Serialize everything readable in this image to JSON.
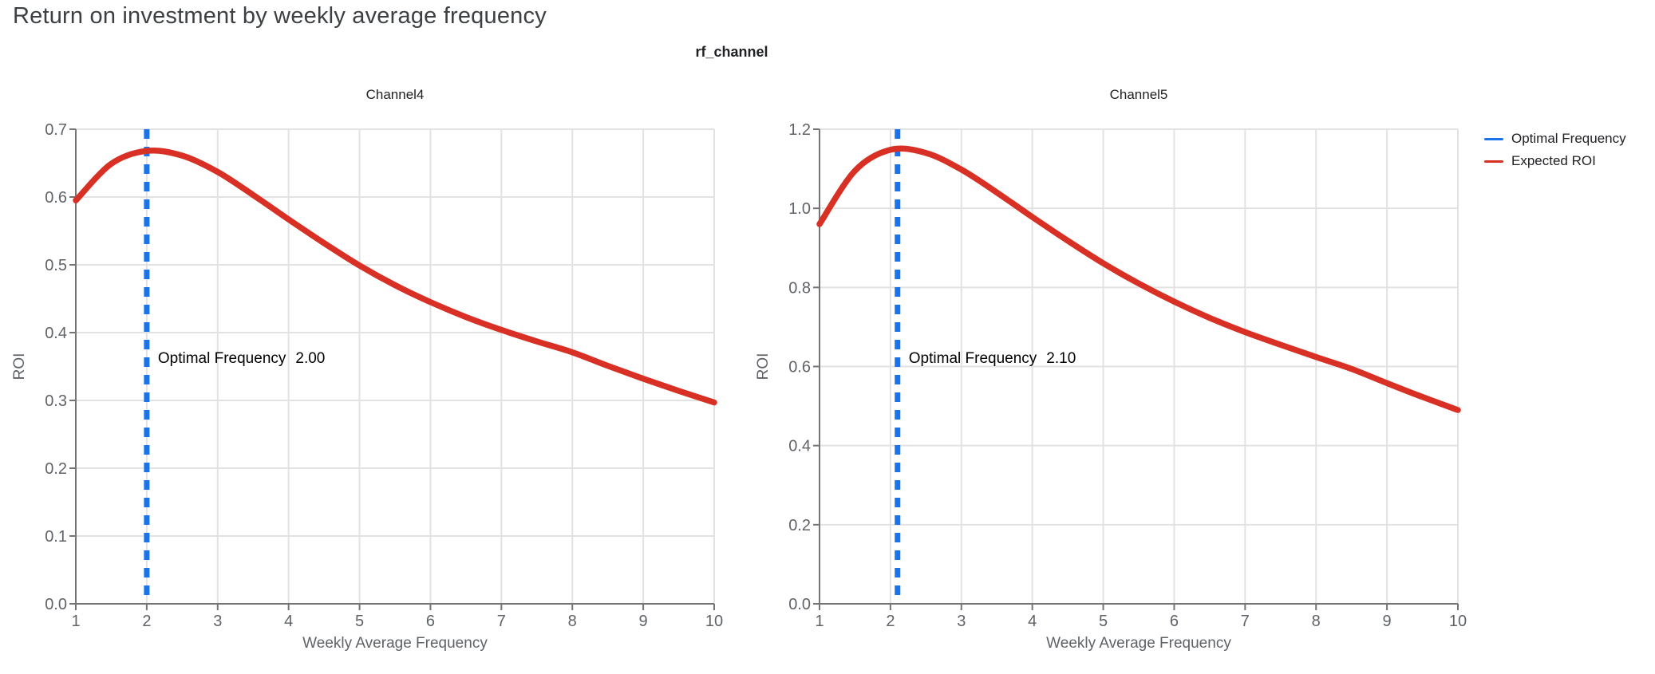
{
  "page": {
    "title": "Return on investment by weekly average frequency",
    "background_color": "#ffffff",
    "title_color": "#3c4043"
  },
  "facet": {
    "title": "rf_channel"
  },
  "legend": {
    "position": "top-right",
    "items": [
      {
        "label": "Optimal Frequency",
        "color": "#1a73e8"
      },
      {
        "label": "Expected ROI",
        "color": "#d93025"
      }
    ]
  },
  "style_colors": {
    "gridline": "#e2e2e2",
    "axis_line": "#757575",
    "tick_label": "#5f6368",
    "axis_title": "#5f6368",
    "subplot_title": "#212121",
    "annotation_text": "#000000"
  },
  "chart_data": [
    {
      "type": "line",
      "title": "Channel4",
      "xlabel": "Weekly Average Frequency",
      "ylabel": "ROI",
      "xlim": [
        1,
        10
      ],
      "ylim": [
        0,
        0.7
      ],
      "grid": true,
      "x_ticks": [
        1,
        2,
        3,
        4,
        5,
        6,
        7,
        8,
        9,
        10
      ],
      "x_tick_labels": [
        "1",
        "2",
        "3",
        "4",
        "5",
        "6",
        "7",
        "8",
        "9",
        "10"
      ],
      "y_ticks": [
        0.0,
        0.1,
        0.2,
        0.3,
        0.4,
        0.5,
        0.6,
        0.7
      ],
      "y_tick_labels": [
        "0.0",
        "0.1",
        "0.2",
        "0.3",
        "0.4",
        "0.5",
        "0.6",
        "0.7"
      ],
      "optimal_frequency": {
        "value": 2.0,
        "annotation_label": "Optimal Frequency",
        "annotation_value": "2.00",
        "color": "#1a73e8",
        "line_style": "dashed"
      },
      "series": [
        {
          "name": "Expected ROI",
          "color": "#d93025",
          "x": [
            1.0,
            1.5,
            2.0,
            2.5,
            3.0,
            3.5,
            4.0,
            4.5,
            5.0,
            5.5,
            6.0,
            6.5,
            7.0,
            7.5,
            8.0,
            8.5,
            9.0,
            9.5,
            10.0
          ],
          "y": [
            0.595,
            0.649,
            0.668,
            0.661,
            0.637,
            0.603,
            0.567,
            0.532,
            0.499,
            0.47,
            0.445,
            0.423,
            0.404,
            0.387,
            0.371,
            0.351,
            0.332,
            0.314,
            0.297
          ]
        }
      ]
    },
    {
      "type": "line",
      "title": "Channel5",
      "xlabel": "Weekly Average Frequency",
      "ylabel": "ROI",
      "xlim": [
        1,
        10
      ],
      "ylim": [
        0,
        1.2
      ],
      "grid": true,
      "x_ticks": [
        1,
        2,
        3,
        4,
        5,
        6,
        7,
        8,
        9,
        10
      ],
      "x_tick_labels": [
        "1",
        "2",
        "3",
        "4",
        "5",
        "6",
        "7",
        "8",
        "9",
        "10"
      ],
      "y_ticks": [
        0.0,
        0.2,
        0.4,
        0.6,
        0.8,
        1.0,
        1.2
      ],
      "y_tick_labels": [
        "0.0",
        "0.2",
        "0.4",
        "0.6",
        "0.8",
        "1.0",
        "1.2"
      ],
      "optimal_frequency": {
        "value": 2.1,
        "annotation_label": "Optimal Frequency",
        "annotation_value": "2.10",
        "color": "#1a73e8",
        "line_style": "dashed"
      },
      "series": [
        {
          "name": "Expected ROI",
          "color": "#d93025",
          "x": [
            1.0,
            1.5,
            2.0,
            2.5,
            3.0,
            3.5,
            4.0,
            4.5,
            5.0,
            5.5,
            6.0,
            6.5,
            7.0,
            7.5,
            8.0,
            8.5,
            9.0,
            9.5,
            10.0
          ],
          "y": [
            0.96,
            1.095,
            1.148,
            1.14,
            1.098,
            1.04,
            0.978,
            0.918,
            0.861,
            0.81,
            0.764,
            0.723,
            0.687,
            0.655,
            0.624,
            0.594,
            0.558,
            0.523,
            0.49
          ]
        }
      ]
    }
  ]
}
